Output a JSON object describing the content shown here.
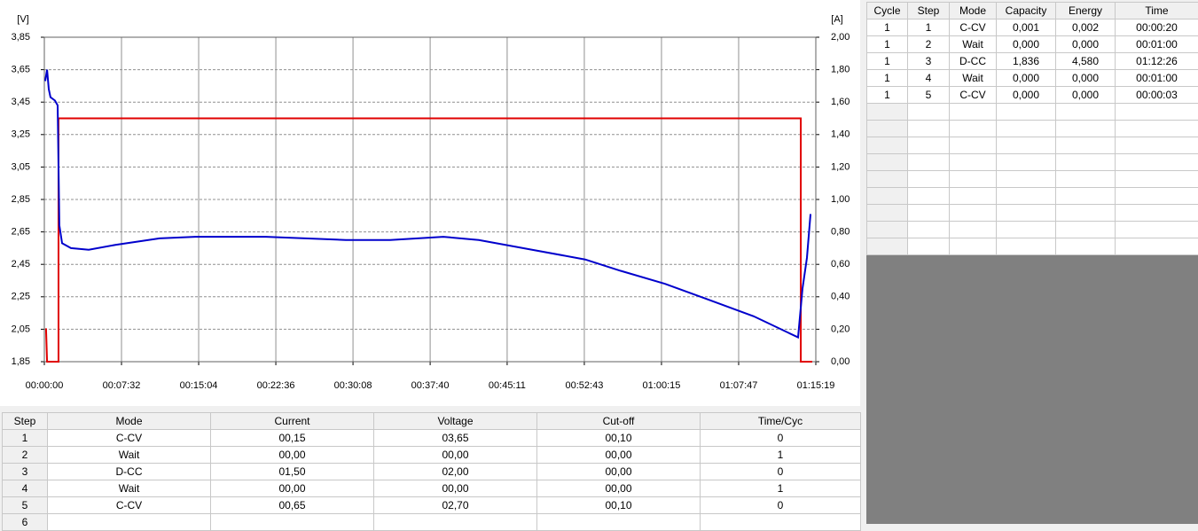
{
  "chart_data": {
    "type": "line",
    "y_unit": "[V]",
    "y2_unit": "[A]",
    "xlim": [
      0,
      4519
    ],
    "xticks": [
      {
        "value": 0,
        "label": "00:00:00"
      },
      {
        "value": 452,
        "label": "00:07:32"
      },
      {
        "value": 904,
        "label": "00:15:04"
      },
      {
        "value": 1356,
        "label": "00:22:36"
      },
      {
        "value": 1808,
        "label": "00:30:08"
      },
      {
        "value": 2260,
        "label": "00:37:40"
      },
      {
        "value": 2711,
        "label": "00:45:11"
      },
      {
        "value": 3163,
        "label": "00:52:43"
      },
      {
        "value": 3615,
        "label": "01:00:15"
      },
      {
        "value": 4067,
        "label": "01:07:47"
      },
      {
        "value": 4519,
        "label": "01:15:19"
      }
    ],
    "ylim": [
      1.85,
      3.85
    ],
    "yticks": [
      {
        "value": 1.85,
        "label": "1,85"
      },
      {
        "value": 2.05,
        "label": "2,05"
      },
      {
        "value": 2.25,
        "label": "2,25"
      },
      {
        "value": 2.45,
        "label": "2,45"
      },
      {
        "value": 2.65,
        "label": "2,65"
      },
      {
        "value": 2.85,
        "label": "2,85"
      },
      {
        "value": 3.05,
        "label": "3,05"
      },
      {
        "value": 3.25,
        "label": "3,25"
      },
      {
        "value": 3.45,
        "label": "3,45"
      },
      {
        "value": 3.65,
        "label": "3,65"
      },
      {
        "value": 3.85,
        "label": "3,85"
      }
    ],
    "y2lim": [
      0,
      2
    ],
    "y2ticks": [
      {
        "value": 0,
        "label": "0,00"
      },
      {
        "value": 0.2,
        "label": "0,20"
      },
      {
        "value": 0.4,
        "label": "0,40"
      },
      {
        "value": 0.6,
        "label": "0,60"
      },
      {
        "value": 0.8,
        "label": "0,80"
      },
      {
        "value": 1,
        "label": "1,00"
      },
      {
        "value": 1.2,
        "label": "1,20"
      },
      {
        "value": 1.4,
        "label": "1,40"
      },
      {
        "value": 1.6,
        "label": "1,60"
      },
      {
        "value": 1.8,
        "label": "1,80"
      },
      {
        "value": 2,
        "label": "2,00"
      }
    ],
    "grid": true,
    "series": [
      {
        "color": "#0000cc",
        "x": [
          5,
          16,
          26,
          36,
          62,
          78,
          88,
          104,
          156,
          260,
          416,
          675,
          883,
          1299,
          1766,
          2026,
          2337,
          2545,
          2857,
          3168,
          3376,
          3636,
          3896,
          4155,
          4415,
          4441,
          4467,
          4488
        ],
        "values": [
          3.58,
          3.65,
          3.53,
          3.48,
          3.46,
          3.43,
          2.69,
          2.58,
          2.55,
          2.54,
          2.57,
          2.61,
          2.62,
          2.62,
          2.6,
          2.6,
          2.62,
          2.6,
          2.54,
          2.48,
          2.41,
          2.33,
          2.23,
          2.13,
          2.0,
          2.3,
          2.49,
          2.76
        ]
      },
      {
        "color": "#e00000",
        "axis": "y2",
        "x": [
          5,
          10,
          16,
          83,
          83,
          4431,
          4431,
          4498
        ],
        "values": [
          0.2,
          0.2,
          0,
          0,
          1.5,
          1.5,
          0,
          0
        ]
      }
    ]
  },
  "results_table": {
    "columns": [
      "Cycle",
      "Step",
      "Mode",
      "Capacity",
      "Energy",
      "Time"
    ],
    "rows": [
      [
        "1",
        "1",
        "C-CV",
        "0,001",
        "0,002",
        "00:00:20"
      ],
      [
        "1",
        "2",
        "Wait",
        "0,000",
        "0,000",
        "00:01:00"
      ],
      [
        "1",
        "3",
        "D-CC",
        "1,836",
        "4,580",
        "01:12:26"
      ],
      [
        "1",
        "4",
        "Wait",
        "0,000",
        "0,000",
        "00:01:00"
      ],
      [
        "1",
        "5",
        "C-CV",
        "0,000",
        "0,000",
        "00:00:03"
      ]
    ]
  },
  "steps_table": {
    "columns": [
      "Step",
      "Mode",
      "Current",
      "Voltage",
      "Cut-off",
      "Time/Cyc"
    ],
    "rows": [
      [
        "1",
        "C-CV",
        "00,15",
        "03,65",
        "00,10",
        "0"
      ],
      [
        "2",
        "Wait",
        "00,00",
        "00,00",
        "00,00",
        "1"
      ],
      [
        "3",
        "D-CC",
        "01,50",
        "02,00",
        "00,00",
        "0"
      ],
      [
        "4",
        "Wait",
        "00,00",
        "00,00",
        "00,00",
        "1"
      ],
      [
        "5",
        "C-CV",
        "00,65",
        "02,70",
        "00,10",
        "0"
      ],
      [
        "6"
      ]
    ]
  }
}
